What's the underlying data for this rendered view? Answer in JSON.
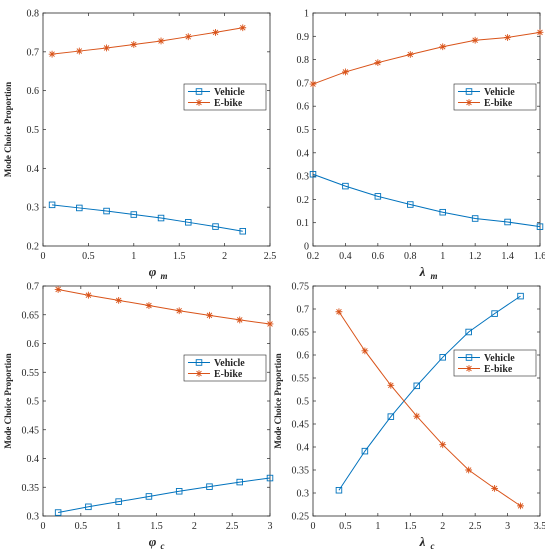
{
  "colors": {
    "vehicle": "#0072BD",
    "ebike": "#D95319"
  },
  "legend": {
    "vehicle": "Vehicle",
    "ebike": "E-bike"
  },
  "chart_data": [
    {
      "type": "line",
      "ylabel": "Mode Choice Proportion",
      "xlabel": "φ",
      "xlabel_sub": "m",
      "xlim": [
        0,
        2.5
      ],
      "ylim": [
        0.2,
        0.8
      ],
      "xticks": [
        "0",
        "0.5",
        "1",
        "1.5",
        "2",
        "2.5"
      ],
      "yticks": [
        "0.2",
        "0.3",
        "0.4",
        "0.5",
        "0.6",
        "0.7",
        "0.8"
      ],
      "legend_position": "center-right",
      "series": [
        {
          "name": "Vehicle",
          "marker": "square",
          "x": [
            0.1,
            0.4,
            0.7,
            1.0,
            1.3,
            1.6,
            1.9,
            2.2
          ],
          "y": [
            0.306,
            0.298,
            0.29,
            0.281,
            0.272,
            0.261,
            0.25,
            0.238
          ]
        },
        {
          "name": "E-bike",
          "marker": "star",
          "x": [
            0.1,
            0.4,
            0.7,
            1.0,
            1.3,
            1.6,
            1.9,
            2.2
          ],
          "y": [
            0.694,
            0.702,
            0.71,
            0.719,
            0.728,
            0.739,
            0.75,
            0.762
          ]
        }
      ]
    },
    {
      "type": "line",
      "ylabel": "",
      "xlabel": "λ",
      "xlabel_sub": "m",
      "xlim": [
        0.2,
        1.6
      ],
      "ylim": [
        0,
        1
      ],
      "xticks": [
        "0.2",
        "0.4",
        "0.6",
        "0.8",
        "1",
        "1.2",
        "1.4",
        "1.6"
      ],
      "yticks": [
        "0",
        "0.1",
        "0.2",
        "0.3",
        "0.4",
        "0.5",
        "0.6",
        "0.7",
        "0.8",
        "0.9",
        "1"
      ],
      "legend_position": "center-right",
      "series": [
        {
          "name": "Vehicle",
          "marker": "square",
          "x": [
            0.2,
            0.4,
            0.6,
            0.8,
            1.0,
            1.2,
            1.4,
            1.6
          ],
          "y": [
            0.308,
            0.257,
            0.213,
            0.178,
            0.145,
            0.118,
            0.103,
            0.083
          ]
        },
        {
          "name": "E-bike",
          "marker": "star",
          "x": [
            0.2,
            0.4,
            0.6,
            0.8,
            1.0,
            1.2,
            1.4,
            1.6
          ],
          "y": [
            0.695,
            0.747,
            0.787,
            0.822,
            0.855,
            0.883,
            0.895,
            0.917
          ]
        }
      ]
    },
    {
      "type": "line",
      "ylabel": "Mode Choice Proportion",
      "xlabel": "φ",
      "xlabel_sub": "c",
      "xlim": [
        0,
        3
      ],
      "ylim": [
        0.3,
        0.7
      ],
      "xticks": [
        "0",
        "0.5",
        "1",
        "1.5",
        "2",
        "2.5",
        "3"
      ],
      "yticks": [
        "0.3",
        "0.35",
        "0.4",
        "0.45",
        "0.5",
        "0.55",
        "0.6",
        "0.65",
        "0.7"
      ],
      "legend_position": "center-right",
      "series": [
        {
          "name": "Vehicle",
          "marker": "square",
          "x": [
            0.2,
            0.6,
            1.0,
            1.4,
            1.8,
            2.2,
            2.6,
            3.0
          ],
          "y": [
            0.306,
            0.316,
            0.325,
            0.334,
            0.343,
            0.351,
            0.359,
            0.366
          ]
        },
        {
          "name": "E-bike",
          "marker": "star",
          "x": [
            0.2,
            0.6,
            1.0,
            1.4,
            1.8,
            2.2,
            2.6,
            3.0
          ],
          "y": [
            0.694,
            0.684,
            0.675,
            0.666,
            0.657,
            0.649,
            0.641,
            0.634
          ]
        }
      ]
    },
    {
      "type": "line",
      "ylabel": "Mode Choice Proportion",
      "xlabel": "λ",
      "xlabel_sub": "c",
      "xlim": [
        0,
        3.5
      ],
      "ylim": [
        0.25,
        0.75
      ],
      "xticks": [
        "0",
        "0.5",
        "1",
        "1.5",
        "2",
        "2.5",
        "3",
        "3.5"
      ],
      "yticks": [
        "0.25",
        "0.3",
        "0.35",
        "0.4",
        "0.45",
        "0.5",
        "0.55",
        "0.6",
        "0.65",
        "0.7",
        "0.75"
      ],
      "legend_position": "top-right",
      "series": [
        {
          "name": "Vehicle",
          "marker": "square",
          "x": [
            0.4,
            0.8,
            1.2,
            1.6,
            2.0,
            2.4,
            2.8,
            3.2
          ],
          "y": [
            0.306,
            0.391,
            0.466,
            0.533,
            0.595,
            0.65,
            0.69,
            0.728
          ]
        },
        {
          "name": "E-bike",
          "marker": "star",
          "x": [
            0.4,
            0.8,
            1.2,
            1.6,
            2.0,
            2.4,
            2.8,
            3.2
          ],
          "y": [
            0.694,
            0.609,
            0.534,
            0.467,
            0.405,
            0.35,
            0.31,
            0.272
          ]
        }
      ]
    }
  ]
}
